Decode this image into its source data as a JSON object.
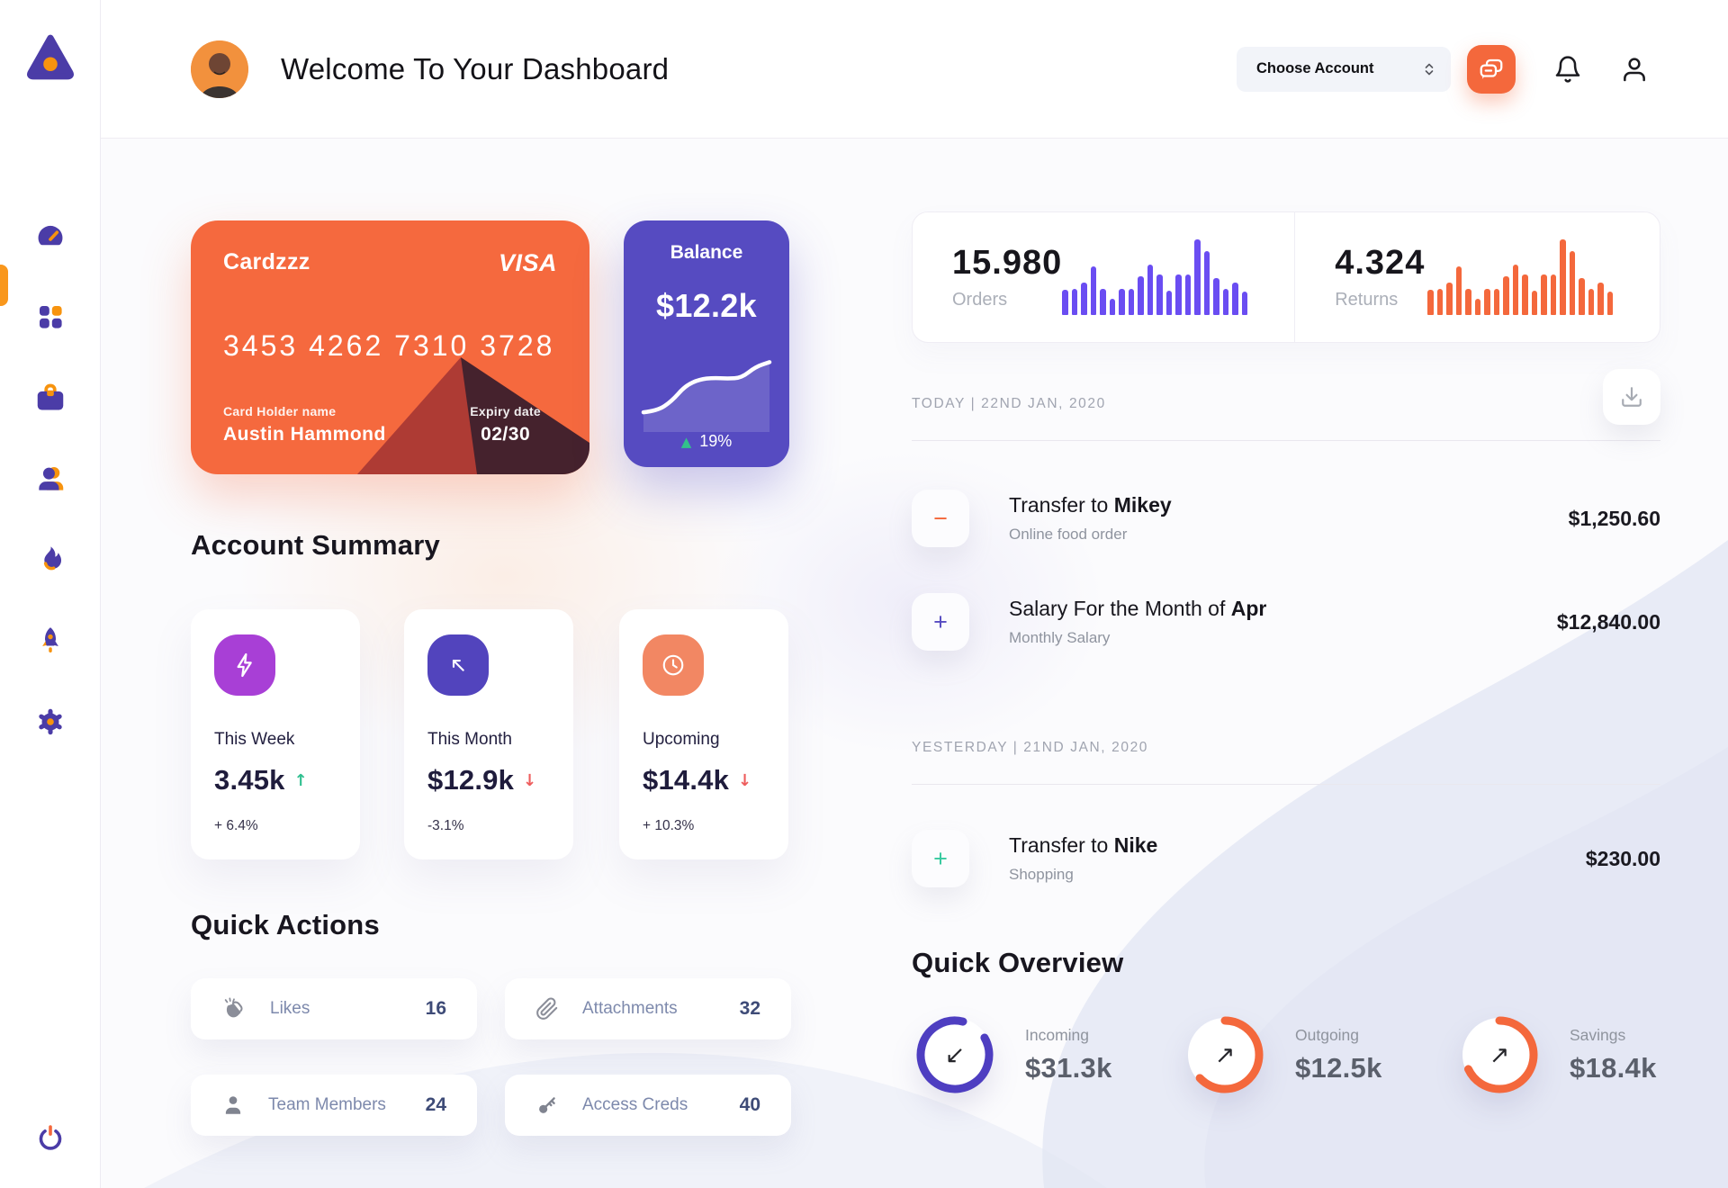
{
  "app": {
    "title": "Welcome To Your Dashboard"
  },
  "header": {
    "choose_account": "Choose Account"
  },
  "sidebar": {
    "items": [
      "dashboard",
      "apps-grid",
      "briefcase",
      "users",
      "activity-flame",
      "rocket",
      "settings-gear"
    ],
    "active": "dashboard",
    "logout": "power"
  },
  "palette": {
    "orange": "#F4683C",
    "purple": "#564BC1",
    "bar_purple": "#6A4DF2",
    "magenta": "#A83FD6",
    "salmon": "#F28763",
    "green": "#2FBF8F",
    "red": "#EE5D5D"
  },
  "credit_card": {
    "name": "Cardzzz",
    "brand": "VISA",
    "number": "3453 4262 7310 3728",
    "holder_label": "Card Holder name",
    "holder": "Austin Hammond",
    "expiry_label": "Expiry date",
    "expiry": "02/30"
  },
  "balance": {
    "label": "Balance",
    "value": "$12.2k",
    "arrow": "▲",
    "change": "19%"
  },
  "account_summary": {
    "heading": "Account Summary",
    "items": [
      {
        "label": "This Week",
        "value": "3.45k",
        "arrow": "↑",
        "trend": "up",
        "change": "+ 6.4%"
      },
      {
        "label": "This Month",
        "value": "$12.9k",
        "arrow": "↓",
        "trend": "down",
        "change": "-3.1%"
      },
      {
        "label": "Upcoming",
        "value": "$14.4k",
        "arrow": "↓",
        "trend": "down",
        "change": "+ 10.3%"
      }
    ]
  },
  "quick_actions": {
    "heading": "Quick Actions",
    "items": [
      {
        "icon": "clap-icon",
        "label": "Likes",
        "value": "16"
      },
      {
        "icon": "paperclip-icon",
        "label": "Attachments",
        "value": "32"
      },
      {
        "icon": "member-icon",
        "label": "Team Members",
        "value": "24"
      },
      {
        "icon": "key-icon",
        "label": "Access Creds",
        "value": "40"
      }
    ]
  },
  "stats": {
    "orders": {
      "value": "15.980",
      "label": "Orders"
    },
    "returns": {
      "value": "4.324",
      "label": "Returns"
    }
  },
  "transactions": {
    "sections": [
      {
        "date": "TODAY | 22ND JAN, 2020",
        "rows": [
          {
            "badge": "−",
            "title_prefix": "Transfer to ",
            "title_bold": "Mikey",
            "subtitle": "Online food order",
            "amount": "$1,250.60"
          },
          {
            "badge": "+",
            "title_prefix": "Salary For the Month of ",
            "title_bold": "Apr",
            "subtitle": "Monthly Salary",
            "amount": "$12,840.00"
          }
        ]
      },
      {
        "date": "YESTERDAY | 21ND JAN, 2020",
        "rows": [
          {
            "badge": "+",
            "title_prefix": "Transfer to ",
            "title_bold": "Nike",
            "subtitle": "Shopping",
            "amount": "$230.00"
          }
        ]
      }
    ]
  },
  "quick_overview": {
    "heading": "Quick Overview",
    "items": [
      {
        "label": "Incoming",
        "value": "$31.3k",
        "arrow": "↙",
        "color": "#4E3EC1",
        "percent": 0.87
      },
      {
        "label": "Outgoing",
        "value": "$12.5k",
        "arrow": "↗",
        "color": "#F4683C",
        "percent": 0.63
      },
      {
        "label": "Savings",
        "value": "$18.4k",
        "arrow": "↗",
        "color": "#F4683C",
        "percent": 0.68
      }
    ]
  },
  "chart_data": [
    {
      "id": "orders-mini-bars",
      "type": "bar",
      "title": "Orders activity",
      "color": "#6A4DF2",
      "axis": "none",
      "values_relative": [
        0.33,
        0.35,
        0.43,
        0.64,
        0.35,
        0.21,
        0.35,
        0.35,
        0.51,
        0.67,
        0.53,
        0.32,
        0.53,
        0.54,
        1.0,
        0.84,
        0.49,
        0.35,
        0.43,
        0.31
      ]
    },
    {
      "id": "returns-mini-bars",
      "type": "bar",
      "title": "Returns activity",
      "color": "#F4683C",
      "axis": "none",
      "values_relative": [
        0.33,
        0.35,
        0.43,
        0.64,
        0.35,
        0.21,
        0.35,
        0.35,
        0.51,
        0.67,
        0.53,
        0.32,
        0.53,
        0.54,
        1.0,
        0.84,
        0.49,
        0.35,
        0.43,
        0.31
      ]
    },
    {
      "id": "balance-sparkline",
      "type": "line",
      "title": "Balance trend",
      "color": "#FFFFFF",
      "axis": "none",
      "values_relative": [
        0.16,
        0.18,
        0.3,
        0.5,
        0.58,
        0.6,
        0.59,
        0.6,
        0.74,
        0.8
      ]
    }
  ]
}
